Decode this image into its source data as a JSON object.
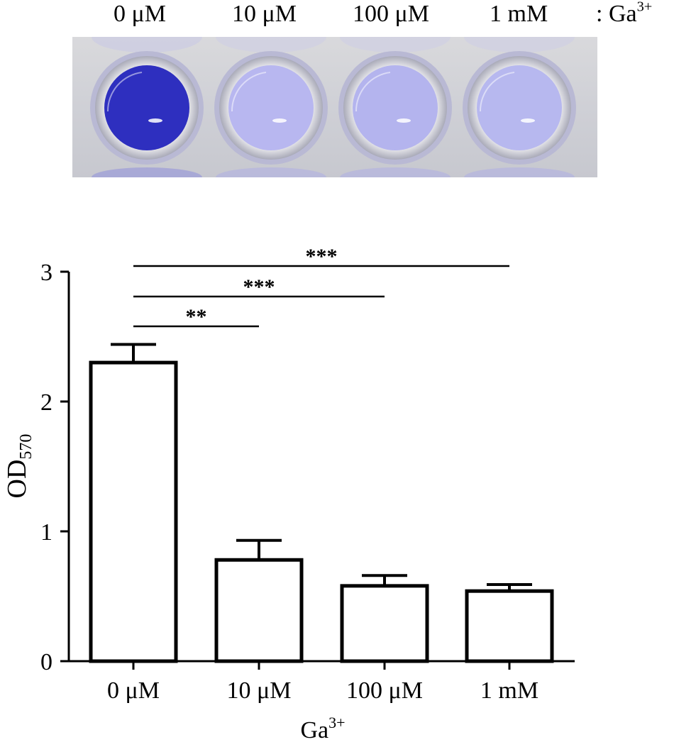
{
  "photo": {
    "labels": [
      "0 μM",
      "10 μM",
      "100 μM",
      "1 mM"
    ],
    "ion_prefix": ": Ga",
    "ion_sup": "3+",
    "well_colors": [
      "#2e2fbf",
      "#b8b7f0",
      "#b4b4ee",
      "#b7b8ef"
    ]
  },
  "chart_data": {
    "type": "bar",
    "categories": [
      "0 μM",
      "10 μM",
      "100 μM",
      "1 mM"
    ],
    "values": [
      2.3,
      0.78,
      0.58,
      0.54
    ],
    "errors": [
      0.14,
      0.15,
      0.08,
      0.05
    ],
    "ylim": [
      0,
      3
    ],
    "yticks": [
      0,
      1,
      2,
      3
    ],
    "ylabel_main": "OD",
    "ylabel_sub": "570",
    "xlabel_main": "Ga",
    "xlabel_sup": "3+",
    "significance": [
      {
        "from": 0,
        "to": 1,
        "label": "**"
      },
      {
        "from": 0,
        "to": 2,
        "label": "***"
      },
      {
        "from": 0,
        "to": 3,
        "label": "***"
      }
    ],
    "bar_fill": "#ffffff",
    "bar_stroke": "#000000"
  }
}
